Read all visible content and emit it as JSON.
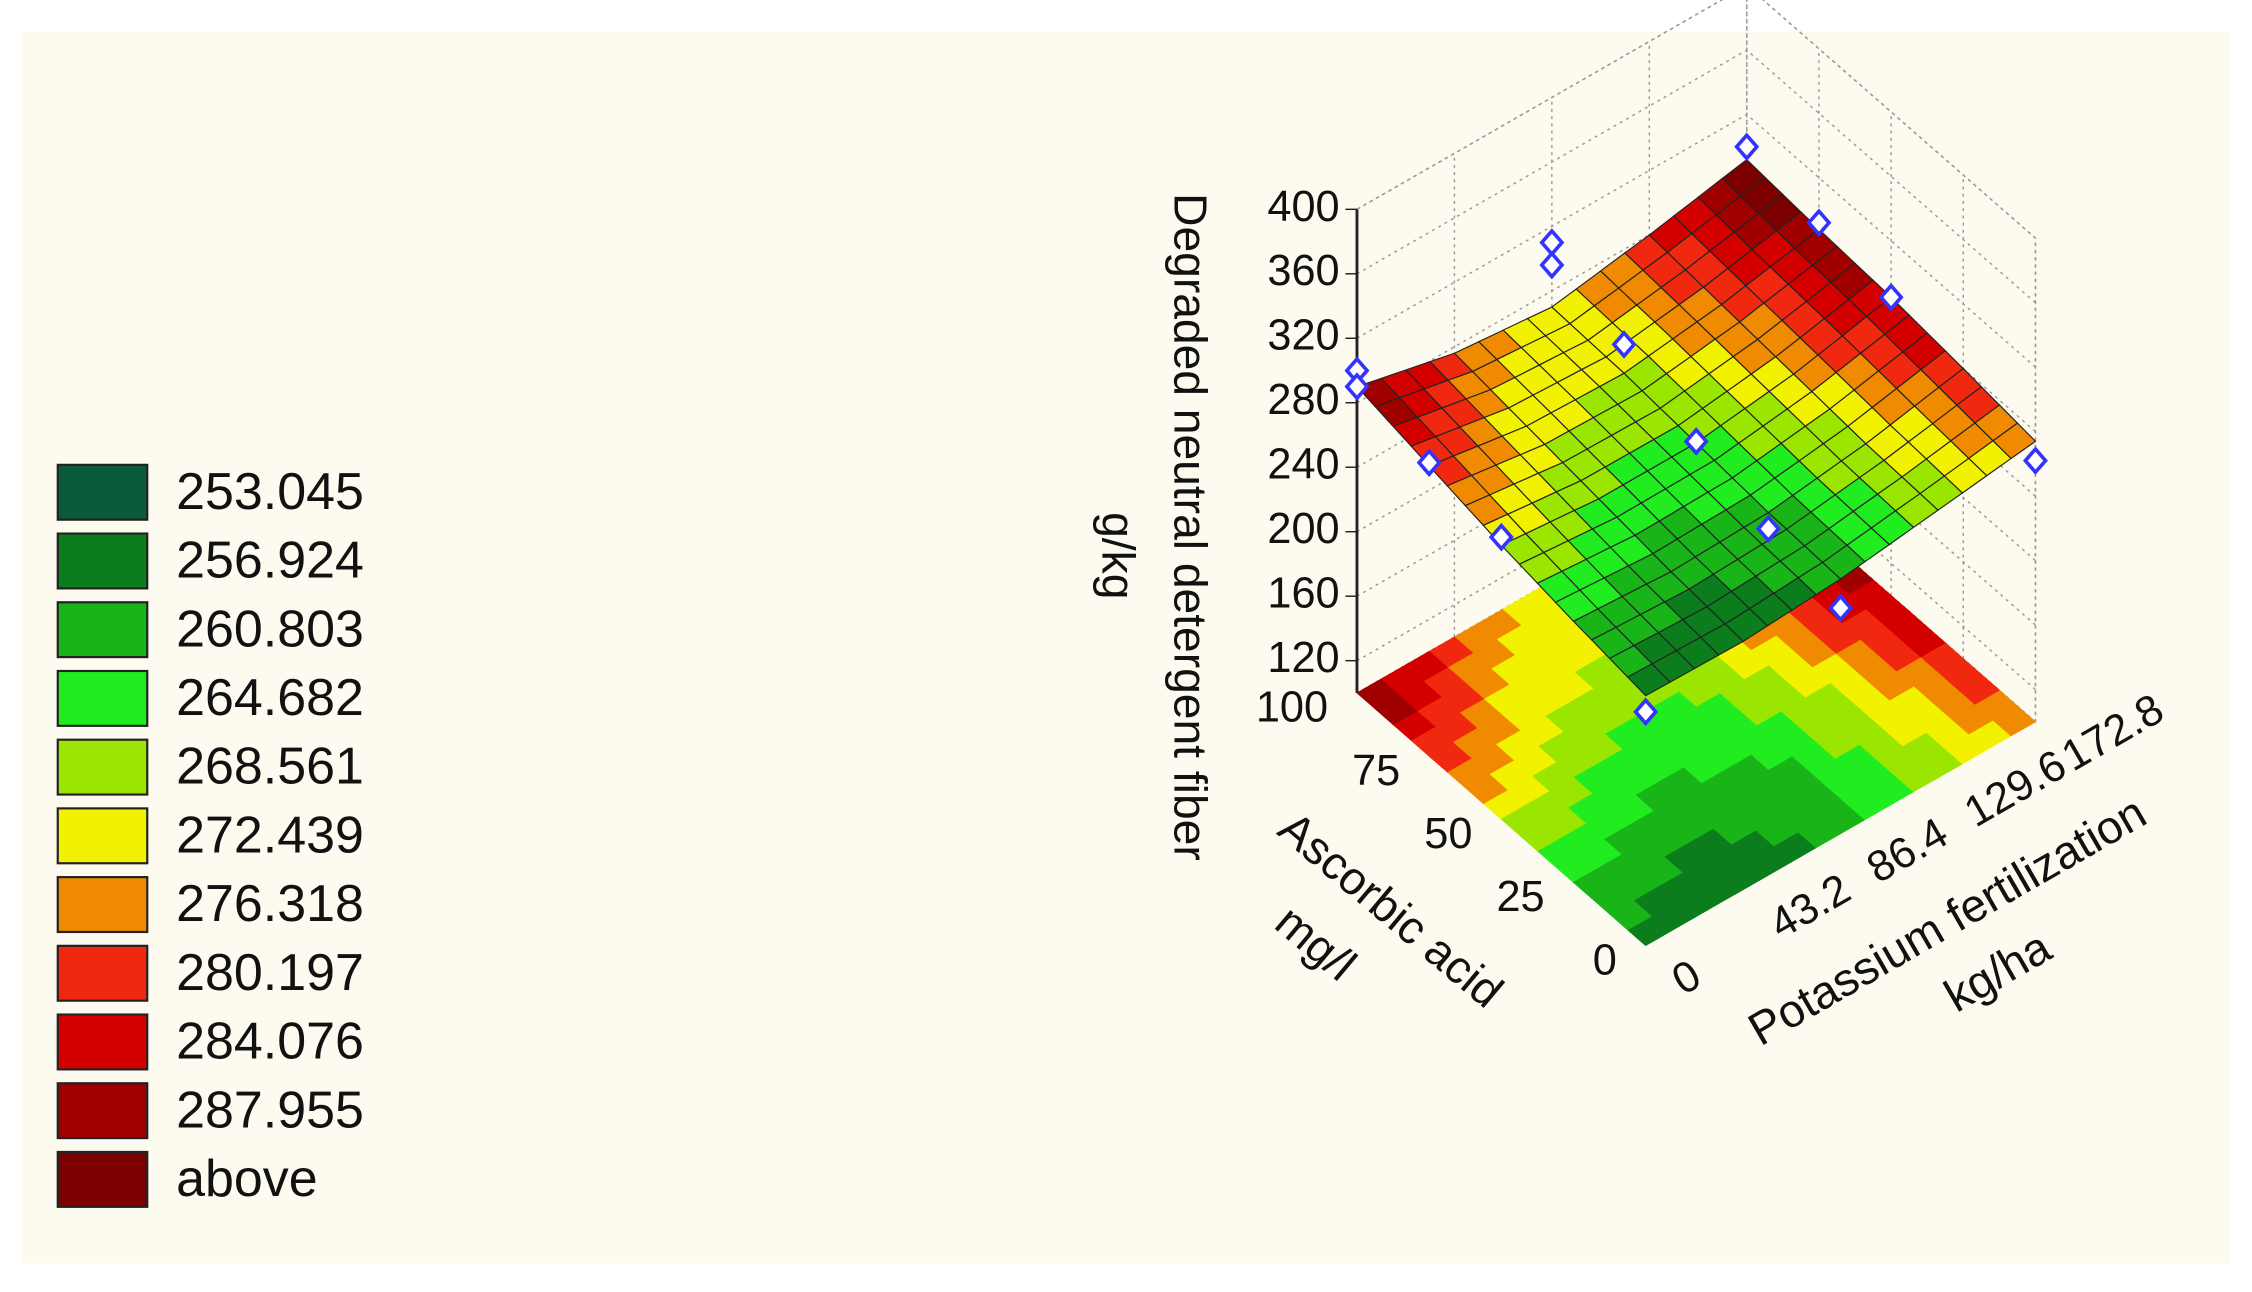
{
  "chart_data": {
    "type": "surface3d",
    "z_label": "Degraded neutral detergent fiber",
    "z_unit": "g/kg",
    "x_label": "Potassium fertilization",
    "x_unit": "kg/ha",
    "y_label": "Ascorbic acid",
    "y_unit": "mg/l",
    "xlim": [
      0,
      172.8
    ],
    "xticks": [
      0,
      43.2,
      86.4,
      129.6,
      172.8
    ],
    "ylim": [
      0,
      100
    ],
    "yticks": [
      0,
      25,
      50,
      75,
      100
    ],
    "zlim": [
      100,
      400
    ],
    "zticks": [
      120,
      160,
      200,
      240,
      280,
      320,
      360,
      400
    ],
    "grid": true,
    "surface": {
      "x": [
        0,
        43.2,
        86.4,
        129.6,
        172.8
      ],
      "y": [
        0,
        25,
        50,
        75,
        100
      ],
      "z": [
        [
          255,
          254,
          258,
          266,
          274
        ],
        [
          262,
          258,
          260,
          268,
          280
        ],
        [
          270,
          264,
          264,
          272,
          285
        ],
        [
          280,
          270,
          268,
          276,
          288
        ],
        [
          290,
          276,
          270,
          280,
          292
        ]
      ]
    },
    "points": {
      "color": "#3333ff",
      "x": [
        0,
        0,
        0,
        0,
        0,
        86.4,
        86.4,
        86.4,
        86.4,
        86.4,
        86.4,
        172.8,
        172.8,
        172.8,
        172.8
      ],
      "y": [
        100,
        100,
        75,
        50,
        0,
        100,
        100,
        75,
        50,
        25,
        0,
        100,
        75,
        50,
        0
      ],
      "z": [
        300,
        290,
        282,
        275,
        245,
        310,
        296,
        286,
        265,
        250,
        240,
        300,
        292,
        285,
        262
      ]
    },
    "legend": {
      "levels": [
        253.045,
        256.924,
        260.803,
        264.682,
        268.561,
        272.439,
        276.318,
        280.197,
        284.076,
        287.955
      ],
      "above_label": "above",
      "colors": [
        "#0a5a3c",
        "#0b7d1c",
        "#18b418",
        "#20ec20",
        "#9be600",
        "#f2f200",
        "#f08a00",
        "#f02810",
        "#d40000",
        "#a00000",
        "#7c0000"
      ]
    }
  }
}
